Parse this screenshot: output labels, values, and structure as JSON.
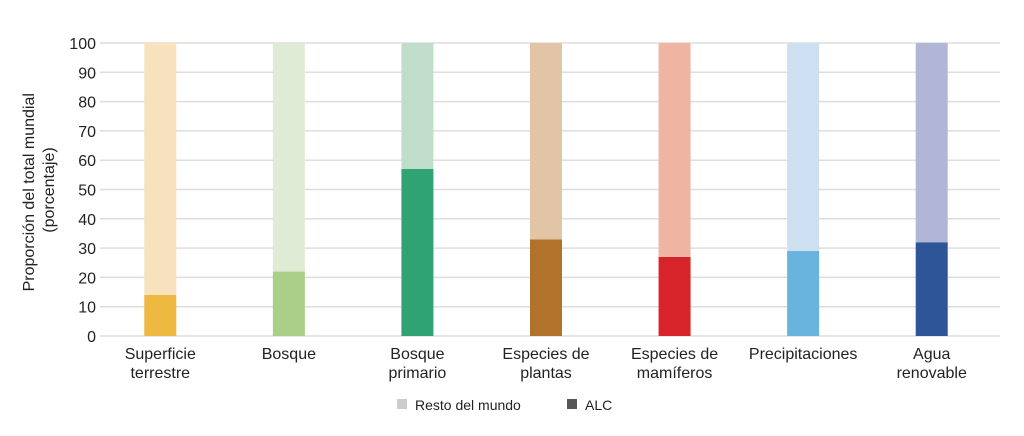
{
  "chart_data": {
    "type": "bar",
    "stacked": true,
    "ylabel": "Proporción del total mundial (porcentaje)",
    "ylabel_lines": [
      "Proporción del total mundial",
      "(porcentaje)"
    ],
    "ylim": [
      0,
      100
    ],
    "yticks": [
      "0",
      "10",
      "20",
      "30",
      "40",
      "50",
      "60",
      "70",
      "80",
      "90",
      "100"
    ],
    "grid": true,
    "legend_position": "bottom",
    "categories": [
      [
        "Superficie",
        "terrestre"
      ],
      [
        "Bosque"
      ],
      [
        "Bosque",
        "primario"
      ],
      [
        "Especies de",
        "plantas"
      ],
      [
        "Especies de",
        "mamíferos"
      ],
      [
        "Precipitaciones"
      ],
      [
        "Agua",
        "renovable"
      ]
    ],
    "series": [
      {
        "name": "ALC",
        "values": [
          14,
          22,
          57,
          33,
          27,
          29,
          32
        ],
        "legend_color": "#555555",
        "colors": [
          "#edb941",
          "#a9cf88",
          "#2fa373",
          "#b1722b",
          "#d7242a",
          "#68b4de",
          "#2e5597"
        ]
      },
      {
        "name": "Resto del mundo",
        "values": [
          86,
          78,
          43,
          67,
          73,
          71,
          68
        ],
        "legend_color": "#cccccc",
        "colors": [
          "#f8e2bd",
          "#dfebd5",
          "#c0dccb",
          "#e2c5a6",
          "#efb5a2",
          "#cce0f1",
          "#b1b6d6"
        ]
      }
    ]
  }
}
